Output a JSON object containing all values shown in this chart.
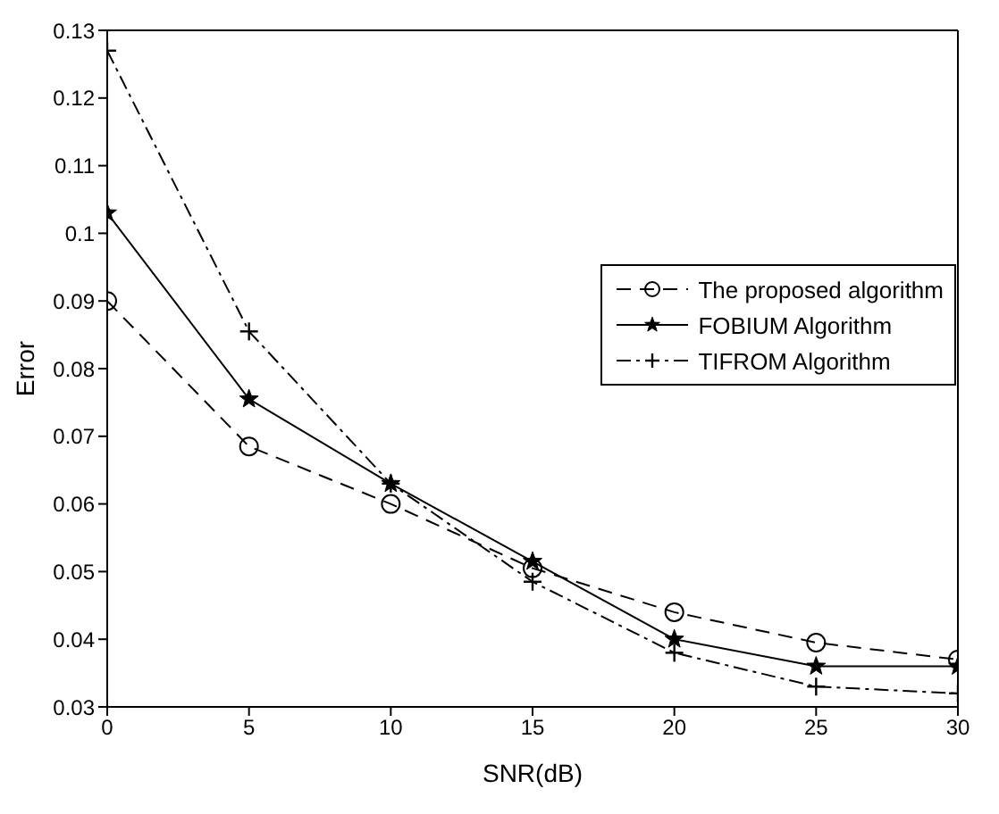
{
  "chart_data": {
    "type": "line",
    "xlabel": "SNR(dB)",
    "ylabel": "Error",
    "x": [
      0,
      5,
      10,
      15,
      20,
      25,
      30
    ],
    "series": [
      {
        "name": "The proposed algorithm",
        "color": "#000000",
        "marker": "circle",
        "line_style": "dashed",
        "values": [
          0.09,
          0.0685,
          0.06,
          0.0505,
          0.044,
          0.0395,
          0.037
        ]
      },
      {
        "name": "FOBIUM Algorithm",
        "color": "#000000",
        "marker": "star",
        "line_style": "solid",
        "values": [
          0.103,
          0.0755,
          0.063,
          0.0515,
          0.04,
          0.036,
          0.036
        ]
      },
      {
        "name": "TIFROM Algorithm",
        "color": "#000000",
        "marker": "cross",
        "line_style": "dashdot",
        "values": [
          0.127,
          0.0855,
          0.063,
          0.0485,
          0.038,
          0.033,
          0.032
        ]
      }
    ],
    "xlim": [
      0,
      30
    ],
    "xticks": [
      0,
      5,
      10,
      15,
      20,
      25,
      30
    ],
    "ylim": [
      0.03,
      0.13
    ],
    "yticks": [
      0.03,
      0.04,
      0.05,
      0.06,
      0.07,
      0.08,
      0.09,
      0.1,
      0.11,
      0.12,
      0.13
    ],
    "grid": false,
    "legend": "top right"
  }
}
